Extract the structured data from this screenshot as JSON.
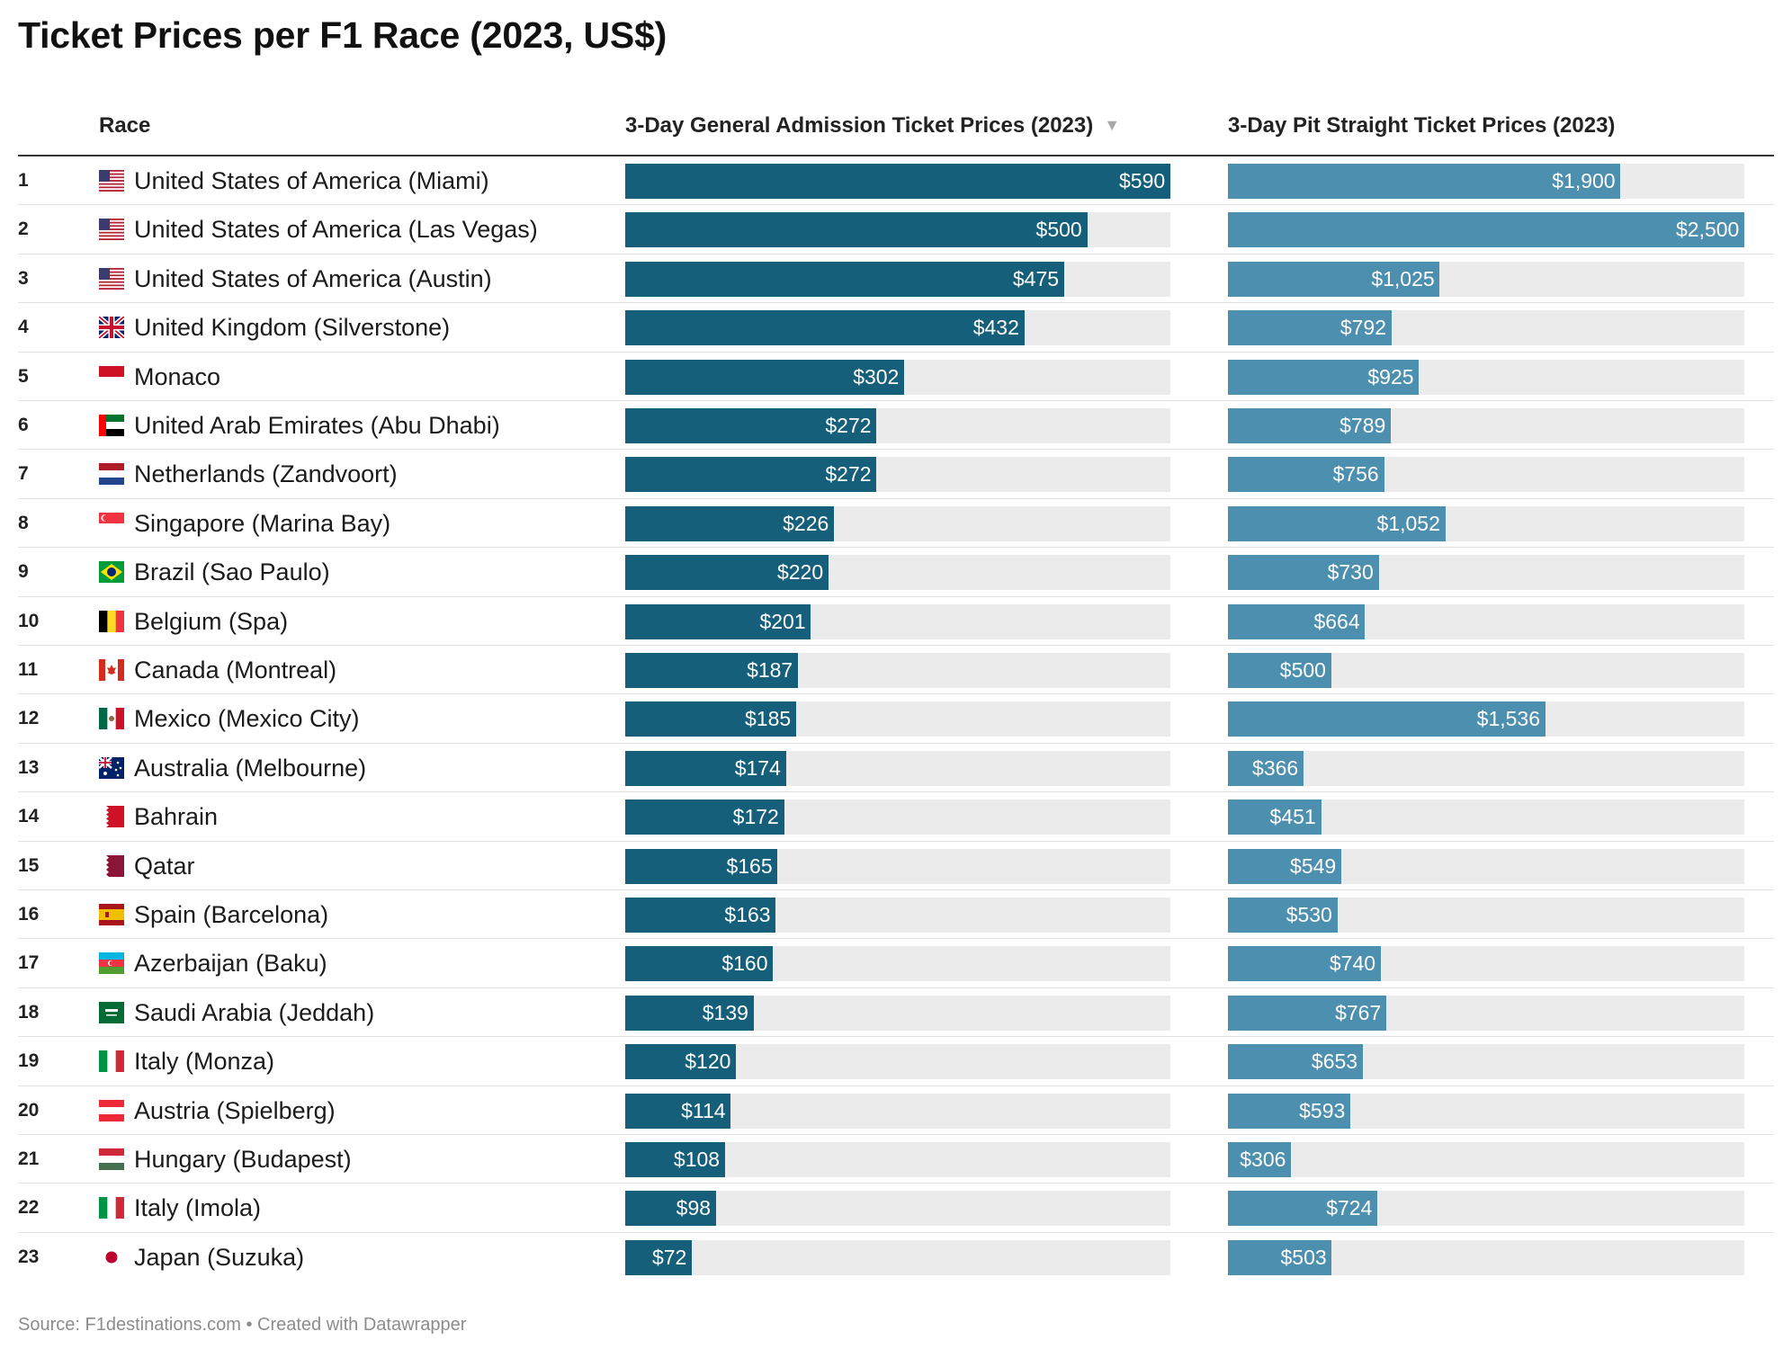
{
  "title": "Ticket Prices per F1 Race (2023, US$)",
  "headers": {
    "race": "Race",
    "ga": "3-Day General Admission Ticket Prices (2023)",
    "pit": "3-Day Pit Straight Ticket Prices (2023)",
    "sort_icon": "sort-descending-icon",
    "sort_glyph": "▼"
  },
  "colors": {
    "ga_bar": "#155f7a",
    "pit_bar": "#4d8faf",
    "track": "#ebebeb"
  },
  "footer": "Source: F1destinations.com • Created with Datawrapper",
  "chart_data": {
    "type": "table",
    "columns": [
      "Race",
      "3-Day General Admission Ticket Prices (2023)",
      "3-Day Pit Straight Ticket Prices (2023)"
    ],
    "scales": {
      "ga_max": 590,
      "pit_max": 2500
    },
    "sorted_by": "3-Day General Admission Ticket Prices (2023)",
    "sort_order": "descending",
    "rows": [
      {
        "rank": "1",
        "flag": "us",
        "race": "United States of America (Miami)",
        "ga": 590,
        "ga_label": "$590",
        "pit": 1900,
        "pit_label": "$1,900"
      },
      {
        "rank": "2",
        "flag": "us",
        "race": "United States of America (Las Vegas)",
        "ga": 500,
        "ga_label": "$500",
        "pit": 2500,
        "pit_label": "$2,500"
      },
      {
        "rank": "3",
        "flag": "us",
        "race": "United States of America (Austin)",
        "ga": 475,
        "ga_label": "$475",
        "pit": 1025,
        "pit_label": "$1,025"
      },
      {
        "rank": "4",
        "flag": "gb",
        "race": "United Kingdom (Silverstone)",
        "ga": 432,
        "ga_label": "$432",
        "pit": 792,
        "pit_label": "$792"
      },
      {
        "rank": "5",
        "flag": "mc",
        "race": "Monaco",
        "ga": 302,
        "ga_label": "$302",
        "pit": 925,
        "pit_label": "$925"
      },
      {
        "rank": "6",
        "flag": "ae",
        "race": "United Arab Emirates (Abu Dhabi)",
        "ga": 272,
        "ga_label": "$272",
        "pit": 789,
        "pit_label": "$789"
      },
      {
        "rank": "7",
        "flag": "nl",
        "race": "Netherlands (Zandvoort)",
        "ga": 272,
        "ga_label": "$272",
        "pit": 756,
        "pit_label": "$756"
      },
      {
        "rank": "8",
        "flag": "sg",
        "race": "Singapore (Marina Bay)",
        "ga": 226,
        "ga_label": "$226",
        "pit": 1052,
        "pit_label": "$1,052"
      },
      {
        "rank": "9",
        "flag": "br",
        "race": "Brazil (Sao Paulo)",
        "ga": 220,
        "ga_label": "$220",
        "pit": 730,
        "pit_label": "$730"
      },
      {
        "rank": "10",
        "flag": "be",
        "race": "Belgium (Spa)",
        "ga": 201,
        "ga_label": "$201",
        "pit": 664,
        "pit_label": "$664"
      },
      {
        "rank": "11",
        "flag": "ca",
        "race": "Canada (Montreal)",
        "ga": 187,
        "ga_label": "$187",
        "pit": 500,
        "pit_label": "$500"
      },
      {
        "rank": "12",
        "flag": "mx",
        "race": "Mexico (Mexico City)",
        "ga": 185,
        "ga_label": "$185",
        "pit": 1536,
        "pit_label": "$1,536"
      },
      {
        "rank": "13",
        "flag": "au",
        "race": "Australia (Melbourne)",
        "ga": 174,
        "ga_label": "$174",
        "pit": 366,
        "pit_label": "$366"
      },
      {
        "rank": "14",
        "flag": "bh",
        "race": "Bahrain",
        "ga": 172,
        "ga_label": "$172",
        "pit": 451,
        "pit_label": "$451"
      },
      {
        "rank": "15",
        "flag": "qa",
        "race": "Qatar",
        "ga": 165,
        "ga_label": "$165",
        "pit": 549,
        "pit_label": "$549"
      },
      {
        "rank": "16",
        "flag": "es",
        "race": "Spain (Barcelona)",
        "ga": 163,
        "ga_label": "$163",
        "pit": 530,
        "pit_label": "$530"
      },
      {
        "rank": "17",
        "flag": "az",
        "race": "Azerbaijan (Baku)",
        "ga": 160,
        "ga_label": "$160",
        "pit": 740,
        "pit_label": "$740"
      },
      {
        "rank": "18",
        "flag": "sa",
        "race": "Saudi Arabia (Jeddah)",
        "ga": 139,
        "ga_label": "$139",
        "pit": 767,
        "pit_label": "$767"
      },
      {
        "rank": "19",
        "flag": "it",
        "race": "Italy (Monza)",
        "ga": 120,
        "ga_label": "$120",
        "pit": 653,
        "pit_label": "$653"
      },
      {
        "rank": "20",
        "flag": "at",
        "race": "Austria (Spielberg)",
        "ga": 114,
        "ga_label": "$114",
        "pit": 593,
        "pit_label": "$593"
      },
      {
        "rank": "21",
        "flag": "hu",
        "race": "Hungary (Budapest)",
        "ga": 108,
        "ga_label": "$108",
        "pit": 306,
        "pit_label": "$306"
      },
      {
        "rank": "22",
        "flag": "it",
        "race": "Italy (Imola)",
        "ga": 98,
        "ga_label": "$98",
        "pit": 724,
        "pit_label": "$724"
      },
      {
        "rank": "23",
        "flag": "jp",
        "race": "Japan (Suzuka)",
        "ga": 72,
        "ga_label": "$72",
        "pit": 503,
        "pit_label": "$503"
      }
    ]
  }
}
